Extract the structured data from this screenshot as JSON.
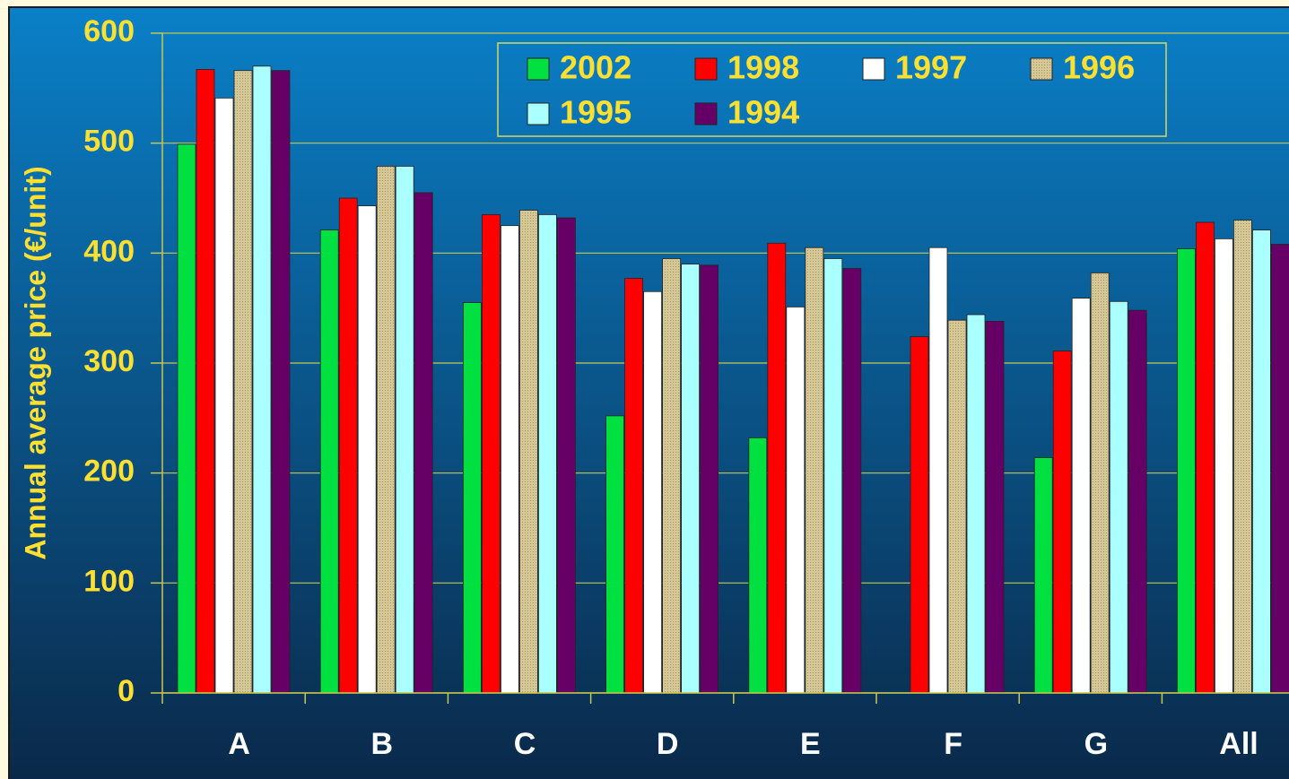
{
  "chart_data": {
    "type": "bar",
    "y_label": "Annual average price (€/unit)",
    "categories": [
      "A",
      "B",
      "C",
      "D",
      "E",
      "F",
      "G",
      "All"
    ],
    "series": [
      {
        "name": "2002",
        "color": "#00e040",
        "values": [
          499,
          421,
          355,
          252,
          232,
          null,
          214,
          404
        ]
      },
      {
        "name": "1998",
        "color": "#ff0000",
        "values": [
          567,
          450,
          435,
          377,
          409,
          324,
          311,
          428
        ]
      },
      {
        "name": "1997",
        "color": "#ffffff",
        "values": [
          541,
          443,
          425,
          365,
          351,
          405,
          359,
          413
        ]
      },
      {
        "name": "1996",
        "color": "#d6c896",
        "values": [
          566,
          479,
          439,
          395,
          405,
          339,
          382,
          430
        ]
      },
      {
        "name": "1995",
        "color": "#aaffff",
        "values": [
          570,
          479,
          435,
          390,
          395,
          344,
          356,
          421
        ]
      },
      {
        "name": "1994",
        "color": "#660066",
        "values": [
          566,
          455,
          432,
          389,
          386,
          338,
          348,
          408
        ]
      }
    ],
    "ylim": [
      0,
      600
    ],
    "yticks": [
      0,
      100,
      200,
      300,
      400,
      500,
      600
    ],
    "grid": true,
    "legend": "top"
  }
}
